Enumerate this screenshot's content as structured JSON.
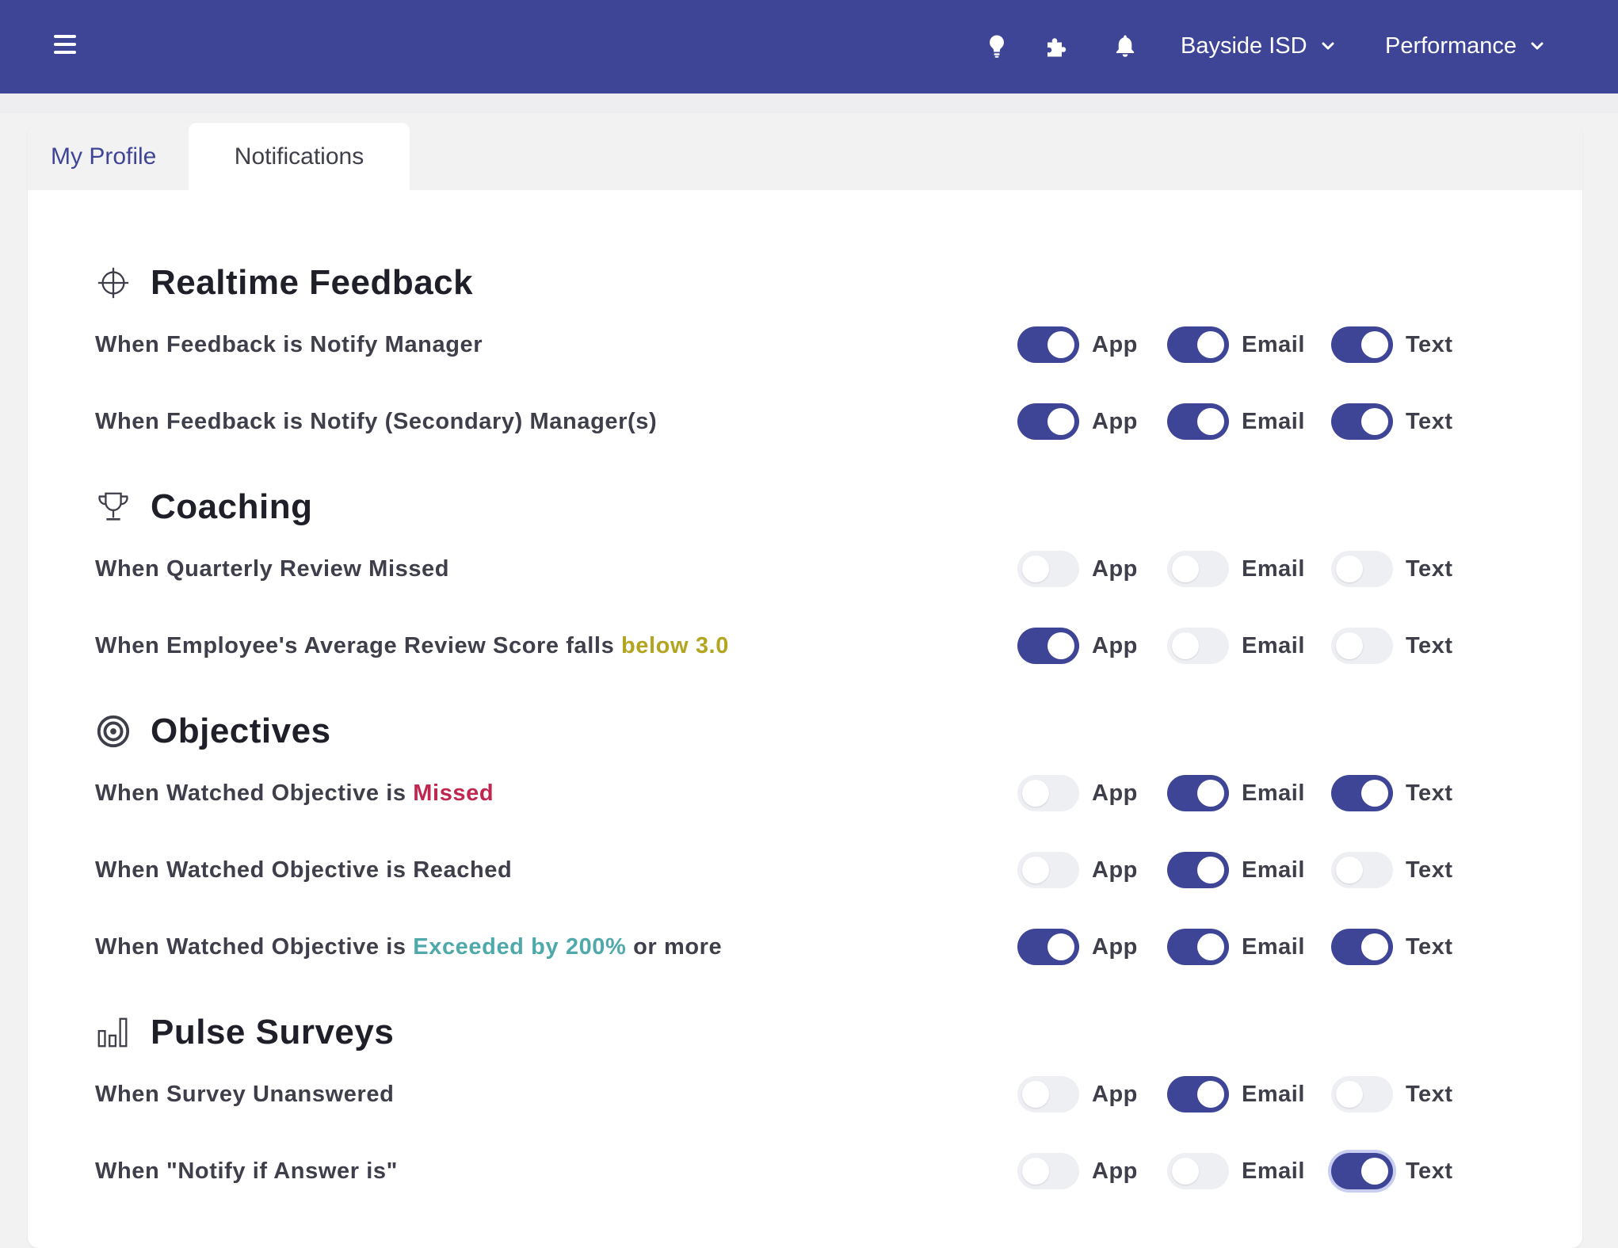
{
  "header": {
    "org_label": "Bayside ISD",
    "module_label": "Performance",
    "icons": [
      "menu-icon",
      "lightbulb-icon",
      "puzzle-icon",
      "bell-icon",
      "chevron-down-icon"
    ],
    "bg_color": "#3f4596"
  },
  "tabs": [
    {
      "label": "My Profile",
      "active": false
    },
    {
      "label": "Notifications",
      "active": true
    }
  ],
  "channel_labels": {
    "app": "App",
    "email": "Email",
    "text": "Text"
  },
  "accent_colors": {
    "toggle_on": "#3f4596",
    "toggle_off": "#eeeff3",
    "gold": "#b3a51f",
    "red": "#c0264f",
    "teal": "#4fa9ab"
  },
  "sections": [
    {
      "title": "Realtime Feedback",
      "icon": "crosshair-icon",
      "rows": [
        {
          "label_parts": [
            {
              "text": "When Feedback is Notify Manager"
            }
          ],
          "app": true,
          "email": true,
          "text": true
        },
        {
          "label_parts": [
            {
              "text": "When Feedback is Notify (Secondary) Manager(s)"
            }
          ],
          "app": true,
          "email": true,
          "text": true
        }
      ]
    },
    {
      "title": "Coaching",
      "icon": "trophy-icon",
      "rows": [
        {
          "label_parts": [
            {
              "text": "When Quarterly Review Missed"
            }
          ],
          "app": false,
          "email": false,
          "text": false
        },
        {
          "label_parts": [
            {
              "text": "When Employee's Average Review Score falls "
            },
            {
              "text": "below 3.0",
              "style": "gold"
            }
          ],
          "app": true,
          "email": false,
          "text": false
        }
      ]
    },
    {
      "title": "Objectives",
      "icon": "target-icon",
      "rows": [
        {
          "label_parts": [
            {
              "text": "When Watched Objective is "
            },
            {
              "text": "Missed",
              "style": "red"
            }
          ],
          "app": false,
          "email": true,
          "text": true
        },
        {
          "label_parts": [
            {
              "text": "When Watched Objective is Reached"
            }
          ],
          "app": false,
          "email": true,
          "text": false
        },
        {
          "label_parts": [
            {
              "text": "When Watched Objective is "
            },
            {
              "text": "Exceeded by 200%",
              "style": "teal"
            },
            {
              "text": " or more"
            }
          ],
          "app": true,
          "email": true,
          "text": true
        }
      ]
    },
    {
      "title": "Pulse Surveys",
      "icon": "bar-chart-icon",
      "rows": [
        {
          "label_parts": [
            {
              "text": "When Survey Unanswered"
            }
          ],
          "app": false,
          "email": true,
          "text": false
        },
        {
          "label_parts": [
            {
              "text": "When \"Notify if Answer is\""
            }
          ],
          "app": false,
          "email": false,
          "text": true,
          "focused": "text"
        }
      ]
    }
  ]
}
